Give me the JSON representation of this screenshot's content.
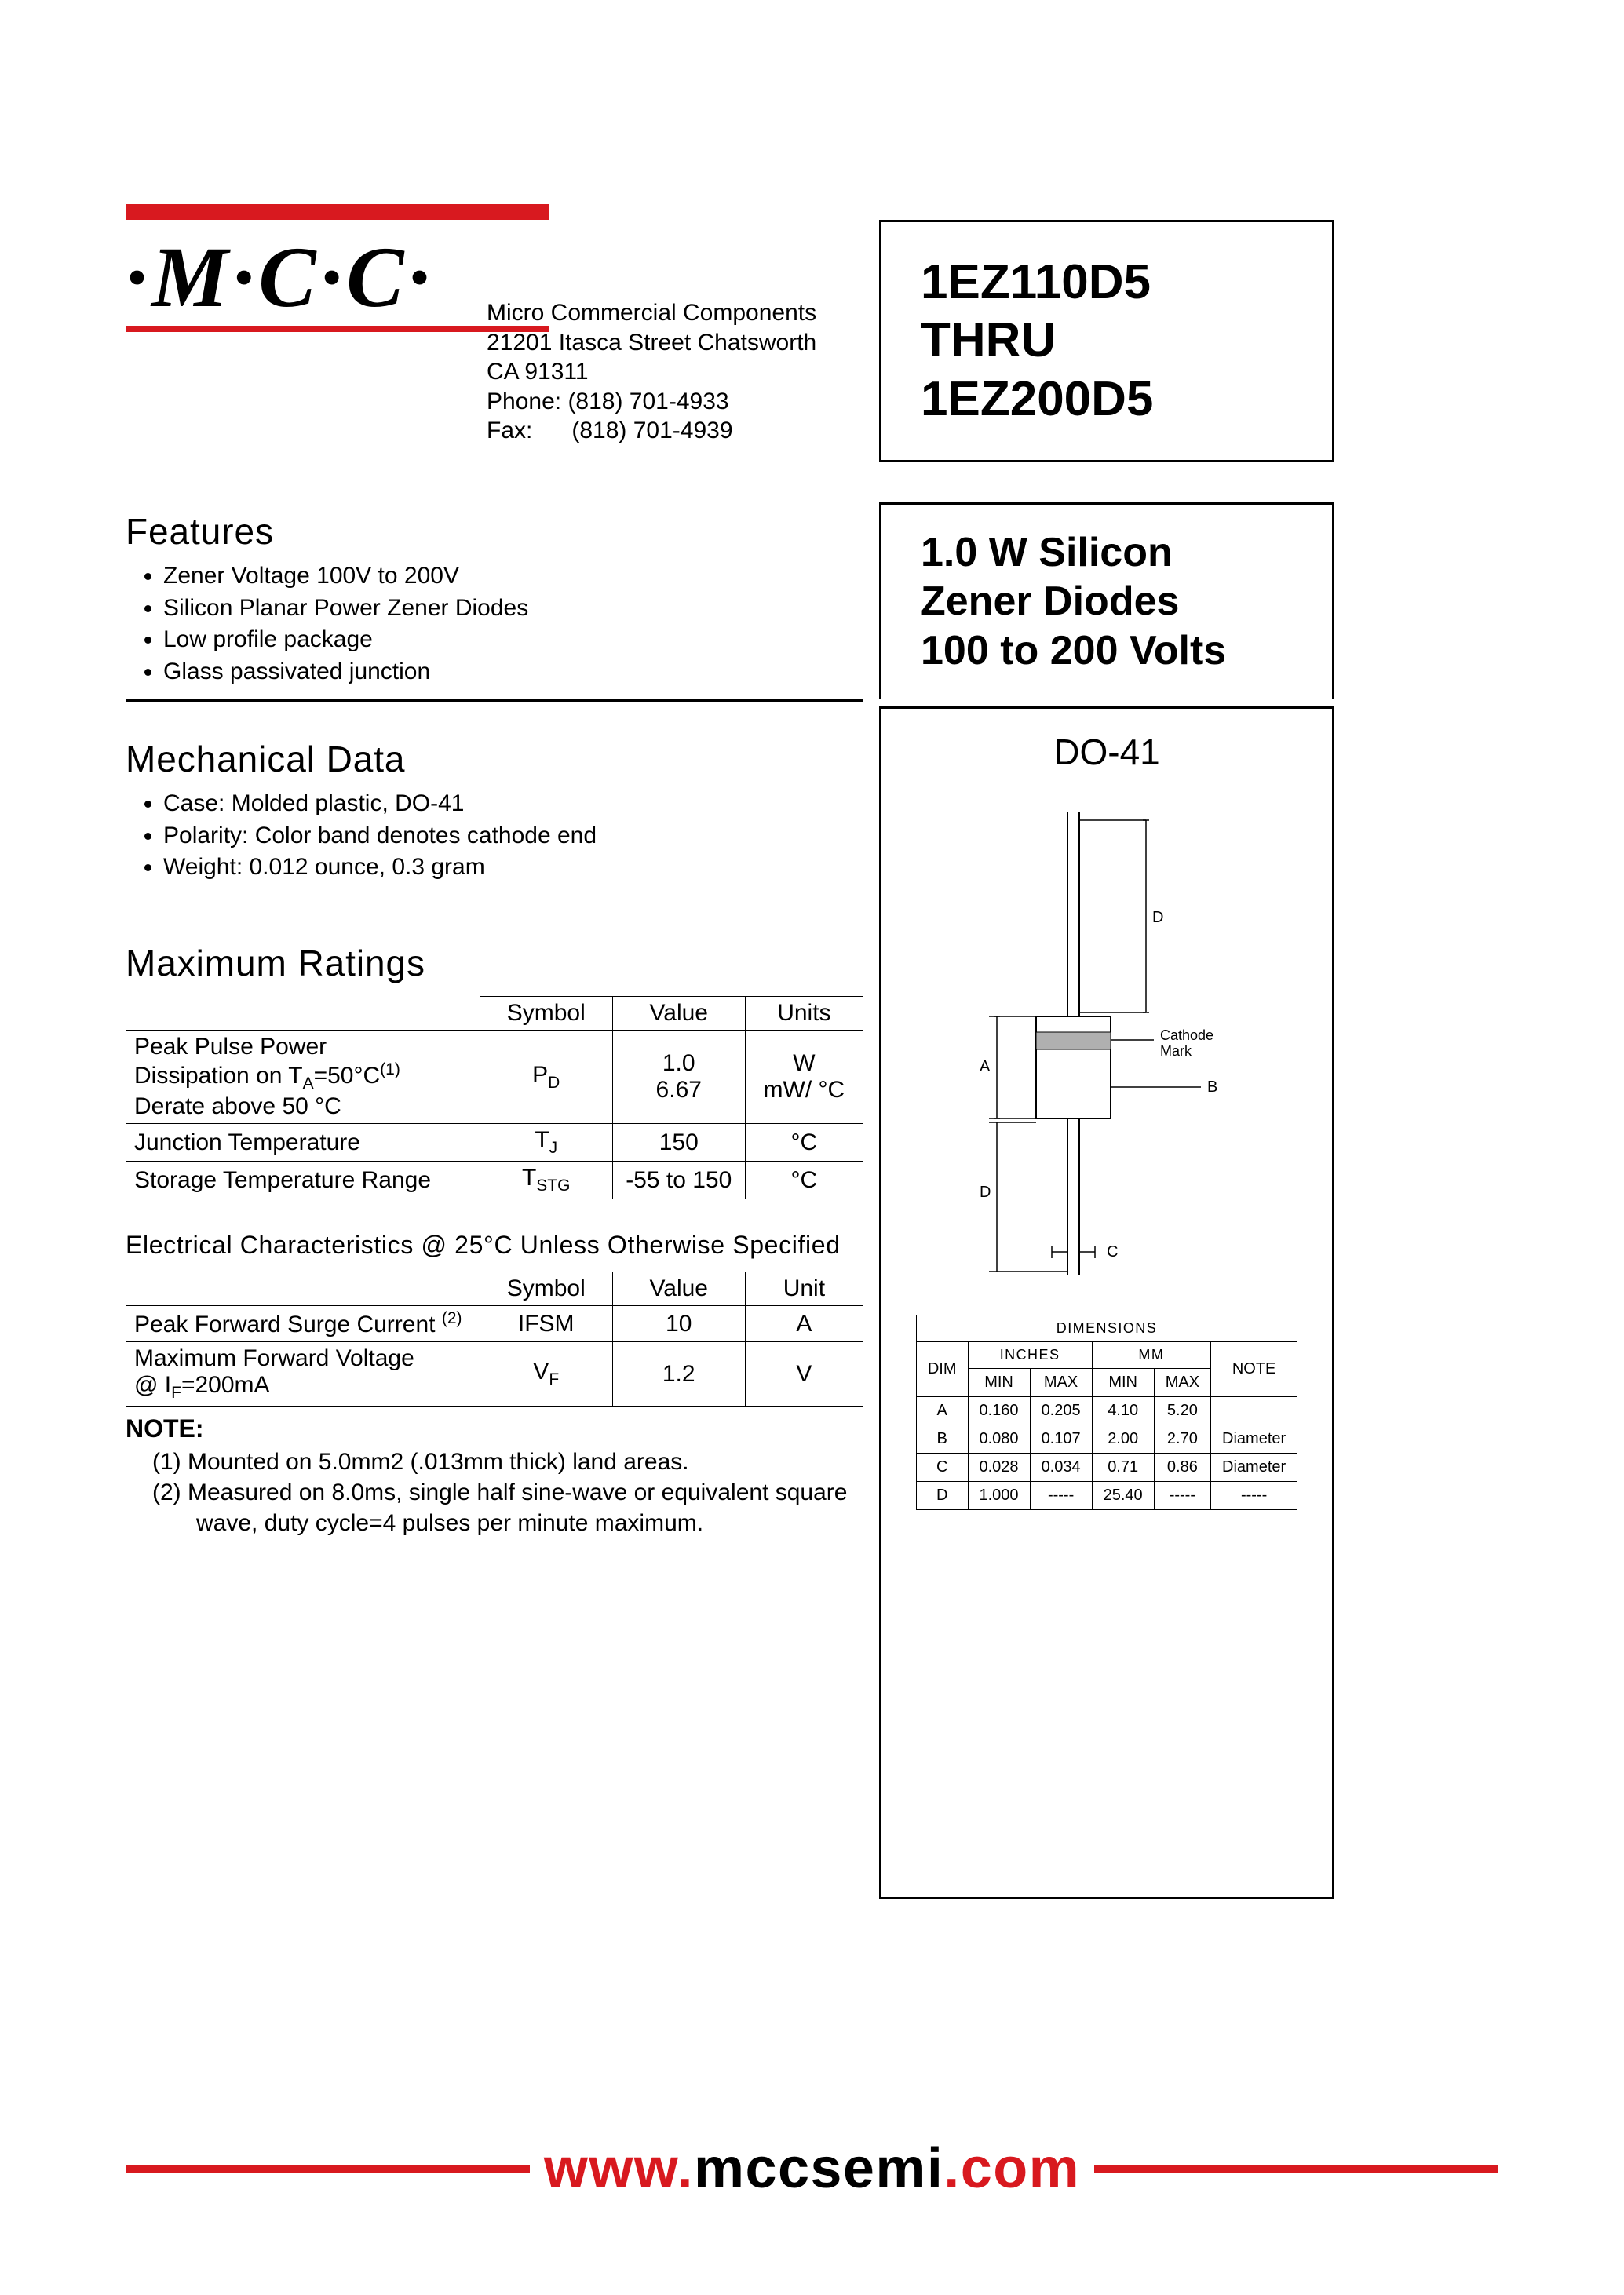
{
  "logo_text": "·M·C·C·",
  "company": {
    "name": "Micro Commercial Components",
    "addr1": "21201 Itasca Street Chatsworth",
    "addr2": "CA 91311",
    "phone_label": "Phone:",
    "phone": "(818) 701-4933",
    "fax_label": "Fax:",
    "fax": "(818) 701-4939"
  },
  "title": {
    "line1": "1EZ110D5",
    "line2": "THRU",
    "line3": "1EZ200D5"
  },
  "subtitle": {
    "line1": "1.0 W Silicon",
    "line2": "Zener Diodes",
    "line3": "100 to 200 Volts"
  },
  "package_name": "DO-41",
  "features": {
    "heading": "Features",
    "items": [
      "Zener Voltage 100V to 200V",
      "Silicon Planar Power Zener Diodes",
      "Low profile package",
      "Glass passivated junction"
    ]
  },
  "mechdata": {
    "heading": "Mechanical Data",
    "items": [
      "Case: Molded plastic, DO-41",
      "Polarity: Color band denotes cathode end",
      "Weight: 0.012 ounce, 0.3 gram"
    ]
  },
  "maxratings": {
    "heading": "Maximum Ratings",
    "columns": [
      "Symbol",
      "Value",
      "Units"
    ],
    "rows": [
      {
        "param": "Peak Pulse Power<br>Dissipation on T<sub>A</sub>=50°C<sup>(1)</sup><br>Derate above 50 °C",
        "symbol": "P<sub>D</sub>",
        "value": "1.0<br>6.67",
        "units": "W<br>mW/ °C"
      },
      {
        "param": "Junction Temperature",
        "symbol": "T<sub>J</sub>",
        "value": "150",
        "units": "°C"
      },
      {
        "param": "Storage Temperature Range",
        "symbol": "T<sub>STG</sub>",
        "value": "-55 to 150",
        "units": "°C"
      }
    ]
  },
  "elec": {
    "heading": "Electrical Characteristics @ 25°C Unless Otherwise Specified",
    "columns": [
      "Symbol",
      "Value",
      "Unit"
    ],
    "rows": [
      {
        "param": "Peak Forward Surge Current <sup>(2)</sup>",
        "symbol": "IFSM",
        "value": "10",
        "units": "A"
      },
      {
        "param": "Maximum Forward Voltage<br>@ I<sub>F</sub>=200mA",
        "symbol": "V<sub>F</sub>",
        "value": "1.2",
        "units": "V"
      }
    ]
  },
  "noteblock": {
    "heading": "NOTE:",
    "items": [
      "Mounted on 5.0mm2 (.013mm thick) land areas.",
      "Measured on 8.0ms, single half sine-wave or equivalent square wave, duty cycle=4 pulses per minute maximum."
    ]
  },
  "dimensions": {
    "title": "DIMENSIONS",
    "group_headers": [
      "INCHES",
      "MM"
    ],
    "sub_headers": [
      "MIN",
      "MAX",
      "MIN",
      "MAX"
    ],
    "dim_label": "DIM",
    "note_label": "NOTE",
    "rows": [
      {
        "dim": "A",
        "in_min": "0.160",
        "in_max": "0.205",
        "mm_min": "4.10",
        "mm_max": "5.20",
        "note": ""
      },
      {
        "dim": "B",
        "in_min": "0.080",
        "in_max": "0.107",
        "mm_min": "2.00",
        "mm_max": "2.70",
        "note": "Diameter"
      },
      {
        "dim": "C",
        "in_min": "0.028",
        "in_max": "0.034",
        "mm_min": "0.71",
        "mm_max": "0.86",
        "note": "Diameter"
      },
      {
        "dim": "D",
        "in_min": "1.000",
        "in_max": "-----",
        "mm_min": "25.40",
        "mm_max": "-----",
        "note": "-----"
      }
    ]
  },
  "diagram": {
    "cathode_label": "Cathode\nMark",
    "dim_labels": {
      "a": "A",
      "b": "B",
      "c": "C",
      "d": "D"
    }
  },
  "footer": {
    "url_prefix": "www.",
    "url_main": "mccsemi",
    "url_suffix": ".com"
  },
  "colors": {
    "brand_red": "#d8191f",
    "black": "#000000",
    "white": "#ffffff",
    "diagram_grey": "#b0b0b0"
  }
}
